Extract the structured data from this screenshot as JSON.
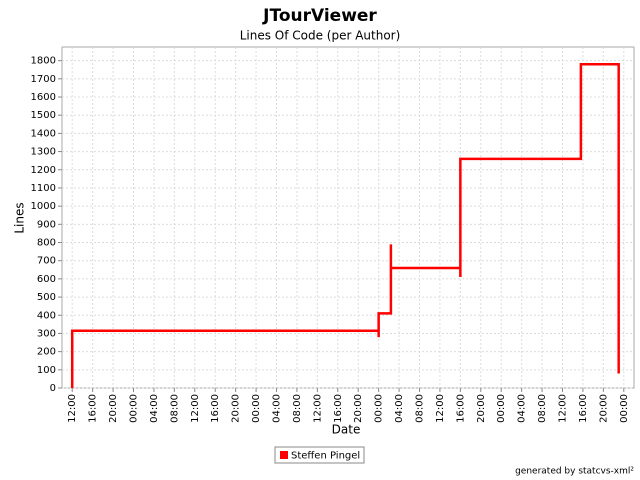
{
  "chart_data": {
    "type": "line",
    "title": "JTourViewer",
    "subtitle": "Lines Of Code (per Author)",
    "x_label": "Date",
    "y_label": "Lines",
    "footer": "generated by statcvs-xml²",
    "x": [
      0,
      0,
      60,
      60,
      60,
      62.4,
      62.4,
      62.4,
      76,
      76,
      76,
      99.6,
      99.6,
      107,
      107
    ],
    "series": [
      {
        "name": "Steffen Pingel",
        "color": "#ff0000",
        "values": [
          0,
          315,
          315,
          280,
          410,
          410,
          790,
          660,
          660,
          610,
          1260,
          1260,
          1780,
          1780,
          80
        ]
      }
    ],
    "xlim": [
      -2,
      110
    ],
    "xticks": [
      {
        "value": 0,
        "label": "12:00"
      },
      {
        "value": 4,
        "label": "16:00"
      },
      {
        "value": 8,
        "label": "20:00"
      },
      {
        "value": 12,
        "label": "00:00"
      },
      {
        "value": 16,
        "label": "04:00"
      },
      {
        "value": 20,
        "label": "08:00"
      },
      {
        "value": 24,
        "label": "12:00"
      },
      {
        "value": 28,
        "label": "16:00"
      },
      {
        "value": 32,
        "label": "20:00"
      },
      {
        "value": 36,
        "label": "00:00"
      },
      {
        "value": 40,
        "label": "04:00"
      },
      {
        "value": 44,
        "label": "08:00"
      },
      {
        "value": 48,
        "label": "12:00"
      },
      {
        "value": 52,
        "label": "16:00"
      },
      {
        "value": 56,
        "label": "20:00"
      },
      {
        "value": 60,
        "label": "00:00"
      },
      {
        "value": 64,
        "label": "04:00"
      },
      {
        "value": 68,
        "label": "08:00"
      },
      {
        "value": 72,
        "label": "12:00"
      },
      {
        "value": 76,
        "label": "16:00"
      },
      {
        "value": 80,
        "label": "20:00"
      },
      {
        "value": 84,
        "label": "00:00"
      },
      {
        "value": 88,
        "label": "04:00"
      },
      {
        "value": 92,
        "label": "08:00"
      },
      {
        "value": 96,
        "label": "12:00"
      },
      {
        "value": 100,
        "label": "16:00"
      },
      {
        "value": 104,
        "label": "20:00"
      },
      {
        "value": 108,
        "label": "00:00"
      }
    ],
    "ylim": [
      0,
      1875
    ],
    "yticks": [
      0,
      100,
      200,
      300,
      400,
      500,
      600,
      700,
      800,
      900,
      1000,
      1100,
      1200,
      1300,
      1400,
      1500,
      1600,
      1700,
      1800
    ],
    "grid": true
  }
}
